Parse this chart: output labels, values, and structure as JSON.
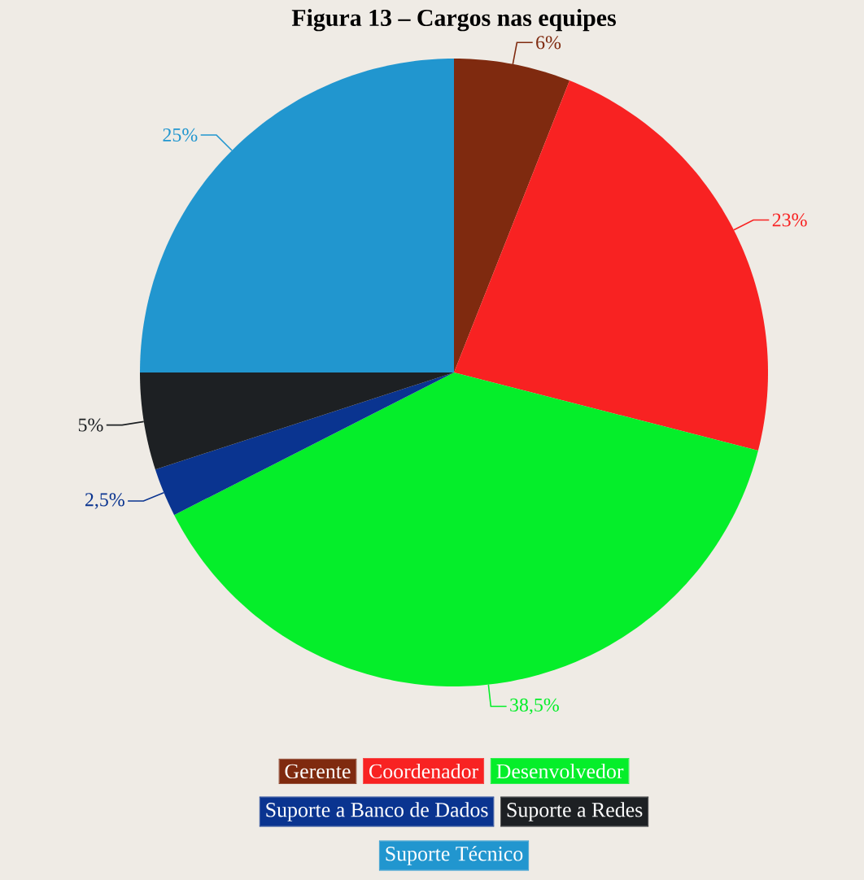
{
  "chart_data": {
    "type": "pie",
    "title": "Figura 13 – Cargos nas equipes",
    "categories": [
      "Gerente",
      "Coordenador",
      "Desenvolvedor",
      "Suporte a Banco de Dados",
      "Suporte a Redes",
      "Suporte Técnico"
    ],
    "values": [
      6,
      23,
      38.5,
      2.5,
      5,
      25
    ],
    "value_labels": [
      "6%",
      "23%",
      "38,5%",
      "2,5%",
      "5%",
      "25%"
    ],
    "colors": [
      "#7f2a0f",
      "#f82222",
      "#05ee2a",
      "#0a3490",
      "#1d2023",
      "#2196cf"
    ],
    "legend": "bottom"
  }
}
